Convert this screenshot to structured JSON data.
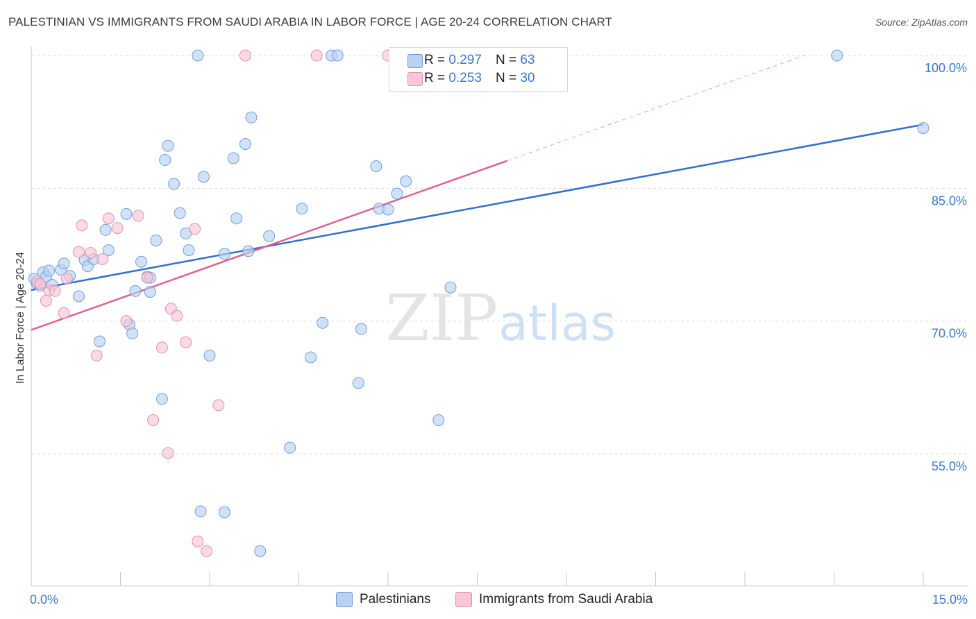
{
  "title": "PALESTINIAN VS IMMIGRANTS FROM SAUDI ARABIA IN LABOR FORCE | AGE 20-24 CORRELATION CHART",
  "source": "Source: ZipAtlas.com",
  "watermark": {
    "zip": "ZIP",
    "atlas": "atlas"
  },
  "legend_top": {
    "rows": [
      {
        "r_label": "R =",
        "r_value": "0.297",
        "n_label": "N =",
        "n_value": "63"
      },
      {
        "r_label": "R =",
        "r_value": "0.253",
        "n_label": "N =",
        "n_value": "30"
      }
    ]
  },
  "legend_bottom": {
    "items": [
      "Palestinians",
      "Immigrants from Saudi Arabia"
    ]
  },
  "colors": {
    "blue_fill": "#b9d2f3",
    "blue_stroke": "#6f9fd8",
    "blue_line": "#2f6fcf",
    "pink_fill": "#f7c6d7",
    "pink_stroke": "#e58fb0",
    "pink_line": "#e0608f",
    "tick_text": "#3a78c9",
    "grid": "#dcdcdc"
  },
  "chart_data": {
    "type": "scatter",
    "xlabel": "",
    "ylabel": "In Labor Force | Age 20-24",
    "xlim": [
      0.0,
      15.0
    ],
    "ylim": [
      40.0,
      102.0
    ],
    "x_tick_labels": [
      {
        "value": 0.0,
        "label": "0.0%"
      },
      {
        "value": 15.0,
        "label": "15.0%"
      }
    ],
    "y_tick_labels": [
      {
        "value": 100.0,
        "label": "100.0%"
      },
      {
        "value": 85.0,
        "label": "85.0%"
      },
      {
        "value": 70.0,
        "label": "70.0%"
      },
      {
        "value": 55.0,
        "label": "55.0%"
      }
    ],
    "grid": true,
    "series": [
      {
        "name": "Palestinians",
        "trend": {
          "x": [
            0.0,
            15.0
          ],
          "y": [
            73.5,
            92.2
          ]
        },
        "points": [
          [
            0.05,
            74.8
          ],
          [
            0.1,
            74.2
          ],
          [
            0.15,
            74.0
          ],
          [
            0.2,
            75.5
          ],
          [
            0.25,
            75.0
          ],
          [
            0.3,
            75.7
          ],
          [
            0.35,
            74.1
          ],
          [
            0.5,
            75.8
          ],
          [
            0.55,
            76.5
          ],
          [
            0.65,
            75.1
          ],
          [
            0.8,
            72.8
          ],
          [
            0.9,
            76.9
          ],
          [
            0.95,
            76.2
          ],
          [
            1.05,
            77.0
          ],
          [
            1.15,
            67.7
          ],
          [
            1.25,
            80.3
          ],
          [
            1.3,
            78.0
          ],
          [
            1.6,
            82.1
          ],
          [
            1.65,
            69.6
          ],
          [
            1.7,
            68.6
          ],
          [
            1.75,
            73.4
          ],
          [
            1.85,
            76.7
          ],
          [
            1.95,
            75.0
          ],
          [
            2.0,
            73.3
          ],
          [
            2.0,
            74.9
          ],
          [
            2.1,
            79.1
          ],
          [
            2.2,
            61.2
          ],
          [
            2.25,
            88.2
          ],
          [
            2.3,
            89.8
          ],
          [
            2.4,
            85.5
          ],
          [
            2.5,
            82.2
          ],
          [
            2.6,
            79.9
          ],
          [
            2.65,
            78.0
          ],
          [
            2.8,
            100.0
          ],
          [
            2.85,
            48.5
          ],
          [
            2.9,
            86.3
          ],
          [
            3.0,
            66.1
          ],
          [
            3.25,
            77.6
          ],
          [
            3.25,
            48.4
          ],
          [
            3.4,
            88.4
          ],
          [
            3.45,
            81.6
          ],
          [
            3.6,
            90.0
          ],
          [
            3.65,
            77.9
          ],
          [
            3.7,
            93.0
          ],
          [
            3.85,
            44.0
          ],
          [
            4.0,
            79.6
          ],
          [
            4.35,
            55.7
          ],
          [
            4.55,
            82.7
          ],
          [
            4.7,
            65.9
          ],
          [
            4.9,
            69.8
          ],
          [
            5.05,
            100.0
          ],
          [
            5.15,
            100.0
          ],
          [
            5.5,
            63.0
          ],
          [
            5.55,
            69.1
          ],
          [
            5.8,
            87.5
          ],
          [
            5.85,
            82.7
          ],
          [
            6.0,
            82.6
          ],
          [
            6.15,
            84.4
          ],
          [
            6.3,
            85.8
          ],
          [
            6.85,
            58.8
          ],
          [
            7.05,
            73.8
          ],
          [
            13.55,
            100.0
          ],
          [
            15.0,
            91.8
          ]
        ]
      },
      {
        "name": "Immigrants from Saudi Arabia",
        "trend": {
          "x": [
            0.0,
            8.0
          ],
          "y": [
            69.0,
            88.1
          ]
        },
        "trend_extension": {
          "x": [
            8.0,
            13.0
          ],
          "y": [
            88.1,
            100.0
          ]
        },
        "points": [
          [
            0.1,
            74.5
          ],
          [
            0.15,
            74.2
          ],
          [
            0.25,
            72.3
          ],
          [
            0.3,
            73.5
          ],
          [
            0.4,
            73.4
          ],
          [
            0.55,
            70.9
          ],
          [
            0.6,
            74.8
          ],
          [
            0.8,
            77.8
          ],
          [
            0.85,
            80.8
          ],
          [
            1.0,
            77.7
          ],
          [
            1.1,
            66.1
          ],
          [
            1.2,
            77.0
          ],
          [
            1.3,
            81.6
          ],
          [
            1.45,
            80.5
          ],
          [
            1.6,
            70.0
          ],
          [
            1.8,
            81.9
          ],
          [
            1.95,
            74.9
          ],
          [
            2.05,
            58.8
          ],
          [
            2.2,
            67.0
          ],
          [
            2.3,
            55.1
          ],
          [
            2.35,
            71.4
          ],
          [
            2.45,
            70.6
          ],
          [
            2.6,
            67.6
          ],
          [
            2.75,
            80.4
          ],
          [
            2.8,
            45.1
          ],
          [
            2.95,
            44.0
          ],
          [
            3.15,
            60.5
          ],
          [
            3.6,
            100.0
          ],
          [
            4.8,
            100.0
          ],
          [
            6.0,
            100.0
          ]
        ]
      }
    ]
  }
}
